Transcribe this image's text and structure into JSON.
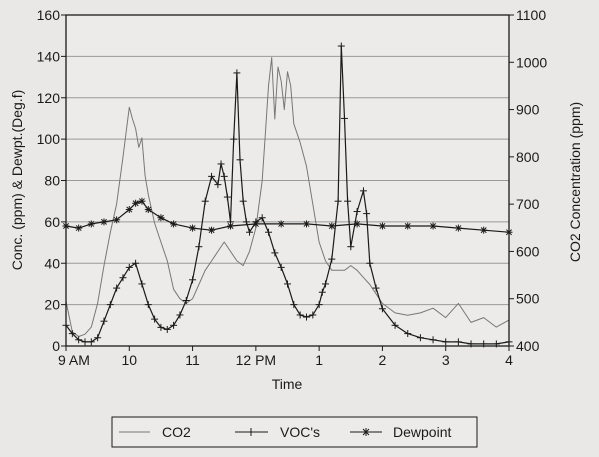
{
  "chart_data": {
    "type": "line",
    "title": "",
    "xlabel": "Time",
    "ylabel_left": "Conc. (ppm) & Dewpt.(Deg.f)",
    "ylabel_right": "CO2 Concentration (ppm)",
    "x_range": [
      9,
      16
    ],
    "x_ticks": [
      {
        "value": 9,
        "label": "9 AM"
      },
      {
        "value": 10,
        "label": "10"
      },
      {
        "value": 11,
        "label": "11"
      },
      {
        "value": 12,
        "label": "12 PM"
      },
      {
        "value": 13,
        "label": "1"
      },
      {
        "value": 14,
        "label": "2"
      },
      {
        "value": 15,
        "label": "3"
      },
      {
        "value": 16,
        "label": "4"
      }
    ],
    "ylim_left": [
      0,
      160
    ],
    "ylim_right": [
      400,
      1100
    ],
    "yticks_left": [
      "0",
      "20",
      "40",
      "60",
      "80",
      "100",
      "120",
      "140",
      "160"
    ],
    "yticks_right": [
      "400",
      "500",
      "600",
      "700",
      "800",
      "900",
      "1000",
      "1100"
    ],
    "grid": "horizontal",
    "legend_position": "bottom",
    "series": [
      {
        "name": "CO2",
        "axis": "right",
        "marker": "none",
        "color": "#777777",
        "x": [
          9.0,
          9.1,
          9.2,
          9.3,
          9.4,
          9.5,
          9.6,
          9.7,
          9.8,
          9.9,
          10.0,
          10.05,
          10.1,
          10.15,
          10.2,
          10.25,
          10.3,
          10.4,
          10.5,
          10.6,
          10.7,
          10.8,
          10.9,
          11.0,
          11.1,
          11.2,
          11.3,
          11.4,
          11.5,
          11.6,
          11.7,
          11.8,
          11.9,
          12.0,
          12.1,
          12.15,
          12.2,
          12.25,
          12.3,
          12.35,
          12.4,
          12.45,
          12.5,
          12.55,
          12.6,
          12.7,
          12.8,
          12.9,
          13.0,
          13.1,
          13.2,
          13.3,
          13.4,
          13.5,
          13.6,
          13.7,
          13.8,
          13.9,
          14.0,
          14.2,
          14.4,
          14.6,
          14.8,
          15.0,
          15.2,
          15.4,
          15.6,
          15.8,
          16.0
        ],
        "y": [
          495,
          430,
          420,
          425,
          440,
          490,
          570,
          640,
          700,
          800,
          905,
          880,
          860,
          820,
          840,
          760,
          720,
          660,
          620,
          580,
          520,
          500,
          490,
          500,
          530,
          560,
          580,
          600,
          620,
          600,
          580,
          570,
          600,
          650,
          750,
          850,
          950,
          1010,
          880,
          990,
          960,
          900,
          980,
          950,
          870,
          830,
          780,
          700,
          620,
          580,
          560,
          560,
          560,
          570,
          560,
          545,
          530,
          510,
          490,
          470,
          465,
          470,
          480,
          460,
          490,
          450,
          460,
          440,
          455
        ]
      },
      {
        "name": "VOC's",
        "axis": "left",
        "marker": "plus",
        "color": "#1a1a1a",
        "x": [
          9.0,
          9.1,
          9.2,
          9.3,
          9.4,
          9.5,
          9.6,
          9.7,
          9.8,
          9.9,
          10.0,
          10.1,
          10.2,
          10.3,
          10.4,
          10.5,
          10.6,
          10.7,
          10.8,
          10.9,
          11.0,
          11.1,
          11.2,
          11.3,
          11.4,
          11.45,
          11.5,
          11.55,
          11.6,
          11.65,
          11.7,
          11.75,
          11.8,
          11.85,
          11.9,
          12.0,
          12.1,
          12.2,
          12.3,
          12.4,
          12.5,
          12.6,
          12.7,
          12.8,
          12.9,
          13.0,
          13.05,
          13.1,
          13.2,
          13.3,
          13.35,
          13.4,
          13.45,
          13.5,
          13.6,
          13.7,
          13.75,
          13.8,
          13.9,
          14.0,
          14.2,
          14.4,
          14.6,
          14.8,
          15.0,
          15.2,
          15.4,
          15.6,
          15.8,
          16.0
        ],
        "y": [
          10,
          6,
          3,
          2,
          2,
          4,
          12,
          20,
          28,
          33,
          38,
          40,
          30,
          20,
          13,
          9,
          8,
          10,
          15,
          22,
          32,
          48,
          70,
          82,
          78,
          88,
          82,
          72,
          60,
          100,
          132,
          90,
          70,
          60,
          55,
          60,
          62,
          55,
          45,
          38,
          30,
          20,
          15,
          14,
          15,
          20,
          26,
          30,
          42,
          70,
          145,
          110,
          70,
          48,
          65,
          75,
          64,
          40,
          28,
          18,
          10,
          6,
          4,
          3,
          2,
          2,
          1,
          1,
          1,
          2
        ]
      },
      {
        "name": "Dewpoint",
        "axis": "left",
        "marker": "star",
        "color": "#1a1a1a",
        "x": [
          9.0,
          9.2,
          9.4,
          9.6,
          9.8,
          10.0,
          10.1,
          10.2,
          10.3,
          10.5,
          10.7,
          11.0,
          11.3,
          11.6,
          12.0,
          12.4,
          12.8,
          13.2,
          13.6,
          14.0,
          14.4,
          14.8,
          15.2,
          15.6,
          16.0
        ],
        "y": [
          58,
          57,
          59,
          60,
          61,
          66,
          69,
          70,
          66,
          62,
          59,
          57,
          56,
          58,
          59,
          59,
          59,
          58,
          59,
          58,
          58,
          58,
          57,
          56,
          55
        ]
      }
    ]
  }
}
